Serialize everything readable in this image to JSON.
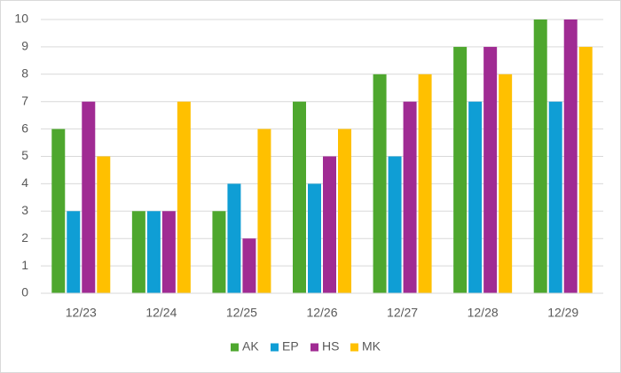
{
  "chart_data": {
    "type": "bar",
    "categories": [
      "12/23",
      "12/24",
      "12/25",
      "12/26",
      "12/27",
      "12/28",
      "12/29"
    ],
    "series": [
      {
        "name": "AK",
        "color": "#4ea72e",
        "values": [
          6,
          3,
          3,
          7,
          8,
          9,
          10
        ]
      },
      {
        "name": "EP",
        "color": "#0f9ed5",
        "values": [
          3,
          3,
          4,
          4,
          5,
          7,
          7
        ]
      },
      {
        "name": "HS",
        "color": "#a02b93",
        "values": [
          7,
          3,
          2,
          5,
          7,
          9,
          10
        ]
      },
      {
        "name": "MK",
        "color": "#ffc000",
        "values": [
          5,
          7,
          6,
          6,
          8,
          8,
          9
        ]
      }
    ],
    "ylim": [
      0,
      10
    ],
    "yticks": [
      0,
      1,
      2,
      3,
      4,
      5,
      6,
      7,
      8,
      9,
      10
    ],
    "grid": true,
    "legend": "bottom"
  }
}
